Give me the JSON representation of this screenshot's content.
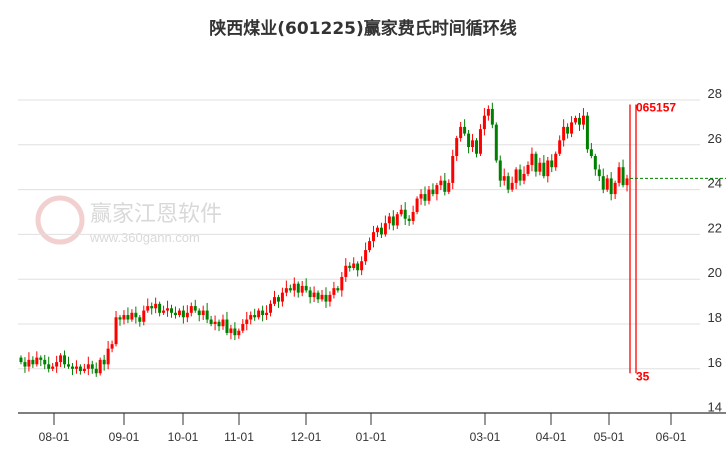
{
  "chart_data": {
    "type": "candlestick",
    "title": "陕西煤业(601225)赢家费氏时间循环线",
    "ylim": [
      14,
      28
    ],
    "y_ticks": [
      14,
      16,
      18,
      20,
      22,
      24,
      26,
      28
    ],
    "x_tick_labels": [
      "08-01",
      "09-01",
      "10-01",
      "11-01",
      "12-01",
      "01-01",
      "03-01",
      "04-01",
      "05-01",
      "06-01"
    ],
    "grid": true,
    "colors": {
      "up": "#ff0000",
      "down": "#008000",
      "grid": "#e0e0e0",
      "cycle_line": "#ff0000",
      "ref_line": "#008000"
    },
    "first_open": 16.5,
    "closes": [
      16.3,
      16.1,
      16.4,
      16.2,
      16.5,
      16.4,
      16.2,
      16.0,
      16.1,
      16.3,
      16.6,
      16.2,
      16.1,
      16.0,
      16.1,
      15.9,
      16.0,
      16.2,
      16.0,
      15.8,
      16.4,
      16.2,
      16.9,
      17.1,
      18.3,
      18.2,
      18.4,
      18.2,
      18.5,
      18.3,
      18.1,
      18.6,
      18.8,
      18.7,
      18.9,
      18.5,
      18.6,
      18.7,
      18.5,
      18.4,
      18.6,
      18.3,
      18.5,
      18.8,
      18.6,
      18.4,
      18.6,
      18.2,
      18.0,
      18.1,
      17.9,
      18.2,
      17.6,
      17.8,
      17.5,
      17.7,
      18.0,
      18.2,
      18.4,
      18.3,
      18.6,
      18.4,
      18.5,
      18.9,
      19.2,
      19.0,
      19.4,
      19.6,
      19.5,
      19.8,
      19.4,
      19.7,
      19.5,
      19.2,
      19.4,
      19.1,
      19.3,
      19.0,
      19.3,
      19.6,
      19.5,
      20.1,
      20.6,
      20.5,
      20.7,
      20.4,
      20.8,
      21.3,
      21.7,
      22.1,
      22.3,
      22.0,
      22.5,
      22.8,
      22.4,
      22.9,
      23.1,
      22.7,
      22.6,
      23.0,
      23.6,
      23.8,
      23.5,
      24.0,
      23.8,
      24.2,
      24.4,
      23.9,
      24.3,
      25.5,
      26.3,
      26.8,
      26.5,
      25.9,
      26.2,
      25.6,
      26.7,
      27.3,
      27.6,
      26.9,
      25.3,
      24.4,
      24.6,
      24.0,
      24.3,
      24.9,
      24.4,
      24.7,
      25.1,
      25.6,
      24.8,
      25.2,
      24.6,
      25.3,
      25.0,
      25.6,
      26.2,
      26.8,
      26.5,
      27.0,
      27.2,
      26.9,
      27.3,
      25.8,
      25.5,
      24.9,
      24.6,
      24.0,
      24.5,
      23.8,
      24.3,
      25.0,
      24.2,
      24.5
    ],
    "reference_line_value": 24.5,
    "cycle_labels": {
      "top": "065157",
      "bottom": "35"
    },
    "cycle_line_range": [
      15.8,
      27.8
    ]
  },
  "watermark": {
    "brand": "赢家江恩软件",
    "url": "www.360gann.com",
    "seal": "江赢恩家"
  }
}
